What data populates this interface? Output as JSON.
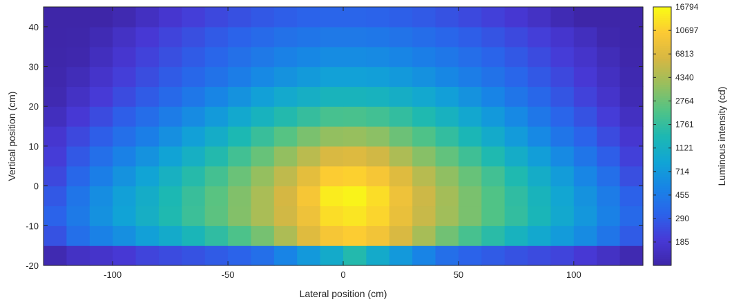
{
  "chart_data": {
    "type": "heatmap",
    "title": "",
    "xlabel": "Lateral position (cm)",
    "ylabel": "Vertical position (cm)",
    "colorbar_label": "Luminous intensity (cd)",
    "colormap": "parula",
    "xlim": [
      -130,
      130
    ],
    "ylim": [
      -20,
      45
    ],
    "xticks": [
      "-100",
      "-50",
      "0",
      "50",
      "100"
    ],
    "xtick_values": [
      -100,
      -50,
      0,
      50,
      100
    ],
    "yticks": [
      "-20",
      "-10",
      "0",
      "10",
      "20",
      "30",
      "40"
    ],
    "ytick_values": [
      -20,
      -10,
      0,
      10,
      20,
      30,
      40
    ],
    "x_centers": [
      -125,
      -115,
      -105,
      -95,
      -85,
      -75,
      -65,
      -55,
      -45,
      -35,
      -25,
      -15,
      -5,
      5,
      15,
      25,
      35,
      45,
      55,
      65,
      75,
      85,
      95,
      105,
      115,
      125
    ],
    "y_centers": [
      -17.5,
      -12.5,
      -7.5,
      -2.5,
      2.5,
      7.5,
      12.5,
      17.5,
      22.5,
      27.5,
      32.5,
      37.5,
      42.5
    ],
    "colorbar_ticks": [
      "16794",
      "10697",
      "6813",
      "4340",
      "2764",
      "1761",
      "1121",
      "714",
      "455",
      "290",
      "185"
    ],
    "colorbar_tick_values": [
      16794,
      10697,
      6813,
      4340,
      2764,
      1761,
      1121,
      714,
      455,
      290,
      185
    ],
    "color_scale": "log",
    "clim": [
      118,
      16794
    ],
    "values": [
      [
        130,
        160,
        170,
        190,
        220,
        240,
        260,
        290,
        320,
        380,
        520,
        720,
        1000,
        1500,
        1000,
        720,
        520,
        380,
        320,
        290,
        260,
        240,
        220,
        190,
        160,
        130
      ],
      [
        260,
        380,
        500,
        620,
        800,
        1000,
        1300,
        1700,
        2200,
        3000,
        4500,
        7000,
        9500,
        10500,
        9000,
        6500,
        4300,
        2900,
        2100,
        1600,
        1200,
        950,
        750,
        580,
        420,
        290
      ],
      [
        320,
        450,
        640,
        840,
        1100,
        1450,
        1900,
        2500,
        3300,
        4400,
        6000,
        8500,
        12500,
        13500,
        11500,
        8000,
        5600,
        4100,
        3100,
        2300,
        1750,
        1300,
        950,
        700,
        500,
        350
      ],
      [
        280,
        420,
        600,
        800,
        1050,
        1400,
        1850,
        2450,
        3250,
        4400,
        6200,
        9500,
        14500,
        15500,
        12500,
        8500,
        5800,
        4200,
        3100,
        2300,
        1700,
        1250,
        900,
        650,
        460,
        310
      ],
      [
        230,
        340,
        480,
        650,
        860,
        1150,
        1550,
        2050,
        2750,
        3750,
        5200,
        7500,
        10500,
        11000,
        9500,
        7000,
        4900,
        3600,
        2700,
        2000,
        1450,
        1050,
        760,
        540,
        380,
        250
      ],
      [
        200,
        280,
        380,
        500,
        650,
        850,
        1120,
        1500,
        2000,
        2700,
        3700,
        5000,
        6500,
        6800,
        6000,
        4500,
        3400,
        2600,
        1950,
        1450,
        1050,
        780,
        570,
        420,
        300,
        210
      ],
      [
        180,
        230,
        300,
        380,
        480,
        620,
        800,
        1050,
        1400,
        1850,
        2400,
        3100,
        3700,
        3800,
        3500,
        2800,
        2250,
        1750,
        1350,
        1000,
        750,
        560,
        420,
        320,
        240,
        180
      ],
      [
        150,
        190,
        240,
        300,
        370,
        460,
        580,
        740,
        950,
        1200,
        1500,
        1800,
        2100,
        2150,
        2000,
        1750,
        1450,
        1180,
        930,
        720,
        560,
        430,
        330,
        260,
        200,
        155
      ],
      [
        130,
        160,
        195,
        240,
        290,
        350,
        430,
        530,
        650,
        800,
        960,
        1100,
        1250,
        1250,
        1200,
        1080,
        940,
        790,
        650,
        520,
        420,
        340,
        270,
        215,
        170,
        135
      ],
      [
        125,
        140,
        170,
        205,
        245,
        290,
        340,
        400,
        470,
        560,
        650,
        740,
        820,
        820,
        790,
        720,
        640,
        550,
        470,
        400,
        335,
        280,
        230,
        190,
        155,
        128
      ],
      [
        120,
        125,
        150,
        180,
        215,
        250,
        290,
        335,
        385,
        440,
        500,
        550,
        590,
        590,
        570,
        530,
        480,
        430,
        375,
        325,
        280,
        240,
        200,
        170,
        140,
        122
      ],
      [
        119,
        120,
        135,
        160,
        190,
        220,
        250,
        285,
        320,
        355,
        390,
        420,
        440,
        440,
        430,
        405,
        370,
        335,
        300,
        265,
        235,
        205,
        175,
        150,
        125,
        119
      ],
      [
        118,
        118,
        118,
        130,
        155,
        180,
        205,
        230,
        255,
        280,
        300,
        320,
        330,
        330,
        320,
        305,
        285,
        260,
        235,
        210,
        185,
        160,
        135,
        118,
        118,
        118
      ]
    ]
  }
}
